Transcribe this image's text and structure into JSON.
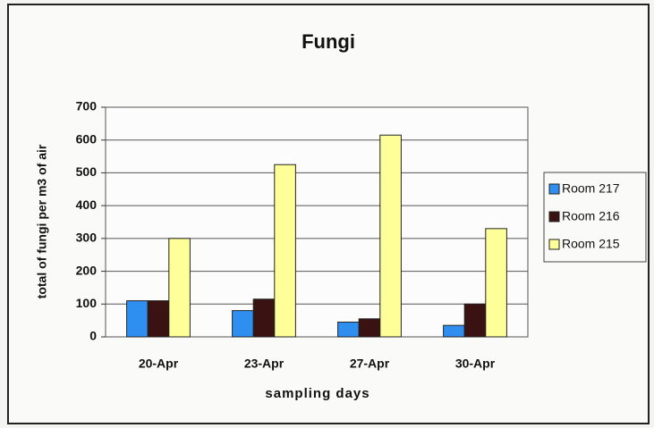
{
  "chart_data": {
    "type": "bar",
    "title": "Fungi",
    "x_label": "sampling days",
    "y_label": "total of fungi per m3 of air",
    "categories": [
      "20-Apr",
      "23-Apr",
      "27-Apr",
      "30-Apr"
    ],
    "series": [
      {
        "name": "Room 217",
        "color": "#2f8ff0",
        "values": [
          110,
          80,
          45,
          35
        ]
      },
      {
        "name": "Room 216",
        "color": "#3a1212",
        "values": [
          110,
          115,
          55,
          100
        ]
      },
      {
        "name": "Room 215",
        "color": "#ffff99",
        "values": [
          300,
          525,
          615,
          330
        ]
      }
    ],
    "ylim": [
      0,
      700
    ],
    "yticks": [
      0,
      100,
      200,
      300,
      400,
      500,
      600,
      700
    ],
    "grid": true,
    "legend": "right"
  }
}
